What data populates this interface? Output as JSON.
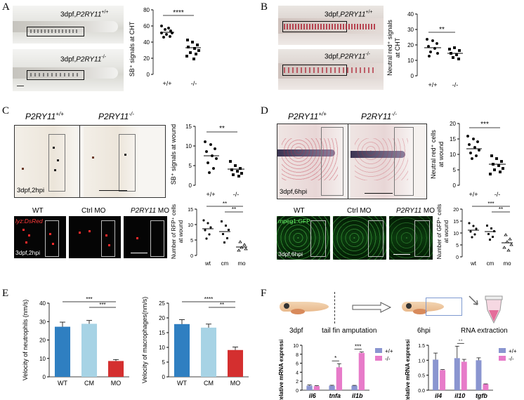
{
  "panels": {
    "A": {
      "letter": "A",
      "label_wt_prefix": "3dpf,",
      "label_wt_gene": "P2RY11",
      "label_wt_sup": "+/+",
      "label_ko_prefix": "3dpf,",
      "label_ko_gene": "P2RY11",
      "label_ko_sup": "-/-",
      "ylabel": "SB⁺ signals at CHT",
      "yticks": [
        "80",
        "60",
        "40",
        "20",
        "0"
      ],
      "xticks": [
        "+/+",
        "-/-"
      ],
      "sig": "****"
    },
    "B": {
      "letter": "B",
      "label_wt_prefix": "3dpf,",
      "label_wt_gene": "P2RY11",
      "label_wt_sup": "+/+",
      "label_ko_prefix": "3dpf,",
      "label_ko_gene": "P2RY11",
      "label_ko_sup": "-/-",
      "ylabel_line1": "Neutral red⁺ signals",
      "ylabel_line2": "at CHT",
      "yticks": [
        "40",
        "30",
        "20",
        "10",
        "0"
      ],
      "xticks": [
        "+/+",
        "-/-"
      ],
      "sig": "**"
    },
    "C": {
      "letter": "C",
      "title_wt_gene": "P2RY11",
      "title_wt_sup": "+/+",
      "title_ko_gene": "P2RY11",
      "title_ko_sup": "-/-",
      "stage": "3dpf,2hpi",
      "ylabel_top": "SB⁺ signals at wound",
      "yticks_top": [
        "15",
        "10",
        "5",
        "0"
      ],
      "xticks_top": [
        "+/+",
        "-/-"
      ],
      "sig_top": "**",
      "row2_labels": [
        "WT",
        "Ctrl MO",
        "MO"
      ],
      "row2_gene": "P2RY11",
      "row2_marker": "lyz:DsRed",
      "stage2": "3dpf,2hpi",
      "ylabel_bottom_1": "Number of RFP⁺ cells",
      "ylabel_bottom_2": "at wound",
      "yticks_bottom": [
        "15",
        "10",
        "5",
        "0"
      ],
      "xticks_bottom": [
        "wt",
        "cm",
        "mo"
      ],
      "sig_bottom_1": "**",
      "sig_bottom_2": "**"
    },
    "D": {
      "letter": "D",
      "title_wt_gene": "P2RY11",
      "title_wt_sup": "+/+",
      "title_ko_gene": "P2RY11",
      "title_ko_sup": "-/-",
      "stage": "3dpf,6hpi",
      "ylabel_top_1": "Neutral red⁺ cells",
      "ylabel_top_2": "at wound",
      "yticks_top": [
        "20",
        "15",
        "10",
        "5",
        "0"
      ],
      "xticks_top": [
        "+/+",
        "-/-"
      ],
      "sig_top": "***",
      "row2_labels": [
        "WT",
        "Ctrl MO",
        "MO"
      ],
      "row2_gene": "P2RY11",
      "row2_marker": "mpeg1:GFP",
      "stage2": "3dpf,6hpi",
      "ylabel_bottom_1": "Number of GFP⁺ cells",
      "ylabel_bottom_2": "at wound",
      "yticks_bottom": [
        "20",
        "15",
        "10",
        "5",
        "0"
      ],
      "xticks_bottom": [
        "wt",
        "cm",
        "mo"
      ],
      "sig_bottom_1": "***",
      "sig_bottom_2": "**"
    },
    "E": {
      "letter": "E"
    },
    "F": {
      "letter": "F",
      "step1": "3dpf",
      "step2": "tail fin amputation",
      "step3": "6hpi",
      "step4": "RNA extraction"
    }
  },
  "chart_data": [
    {
      "type": "bar",
      "panel": "E-left",
      "categories": [
        "WT",
        "CM",
        "MO"
      ],
      "values": [
        27.2,
        28.8,
        8.6
      ],
      "errors": [
        2.5,
        1.8,
        0.8
      ],
      "colors": [
        "#2f7fc1",
        "#a7d3e5",
        "#d42f2f"
      ],
      "ylabel": "Velocity of neutrophils (nm/s)",
      "ylim": [
        0,
        40
      ],
      "yticks": [
        "0",
        "10",
        "20",
        "30",
        "40"
      ],
      "significance": [
        {
          "from": 0,
          "to": 2,
          "label": "***"
        },
        {
          "from": 1,
          "to": 2,
          "label": "***"
        }
      ]
    },
    {
      "type": "bar",
      "panel": "E-right",
      "categories": [
        "WT",
        "CM",
        "MO"
      ],
      "values": [
        17.9,
        16.7,
        9.1
      ],
      "errors": [
        1.5,
        1.2,
        1.0
      ],
      "colors": [
        "#2f7fc1",
        "#a7d3e5",
        "#d42f2f"
      ],
      "ylabel": "Velocity of macrophages(nm/s)",
      "ylim": [
        0,
        25
      ],
      "yticks": [
        "0",
        "5",
        "10",
        "15",
        "20",
        "25"
      ],
      "significance": [
        {
          "from": 0,
          "to": 2,
          "label": "****"
        },
        {
          "from": 1,
          "to": 2,
          "label": "**"
        }
      ]
    },
    {
      "type": "bar",
      "panel": "F-left",
      "categories": [
        "il6",
        "tnfa",
        "il1b"
      ],
      "series": [
        {
          "name": "+/+",
          "color": "#8a95d0",
          "values": [
            1.0,
            1.0,
            1.0
          ],
          "errors": [
            0.15,
            0.1,
            0.08
          ]
        },
        {
          "name": "-/-",
          "color": "#e77bc9",
          "values": [
            0.9,
            5.1,
            8.3
          ],
          "errors": [
            0.1,
            0.8,
            0.2
          ]
        }
      ],
      "ylabel": "Relative mRNA expression",
      "ylim": [
        0,
        10
      ],
      "yticks": [
        "0",
        "2",
        "4",
        "6",
        "8",
        "10"
      ],
      "significance": [
        {
          "category": 1,
          "label": "*"
        },
        {
          "category": 2,
          "label": "***"
        }
      ]
    },
    {
      "type": "bar",
      "panel": "F-right",
      "categories": [
        "il4",
        "il10",
        "tgfb"
      ],
      "series": [
        {
          "name": "+/+",
          "color": "#8a95d0",
          "values": [
            1.02,
            1.07,
            1.0
          ],
          "errors": [
            0.22,
            0.4,
            0.08
          ]
        },
        {
          "name": "-/-",
          "color": "#e77bc9",
          "values": [
            0.67,
            0.95,
            0.2
          ],
          "errors": [
            0.02,
            0.08,
            0.01
          ]
        }
      ],
      "ylabel": "Relative mRNA expression",
      "ylim": [
        0,
        1.5
      ],
      "yticks": [
        "0.0",
        "0.5",
        "1.0",
        "1.5"
      ],
      "significance": [
        {
          "category": 1,
          "label": "**"
        }
      ]
    }
  ]
}
